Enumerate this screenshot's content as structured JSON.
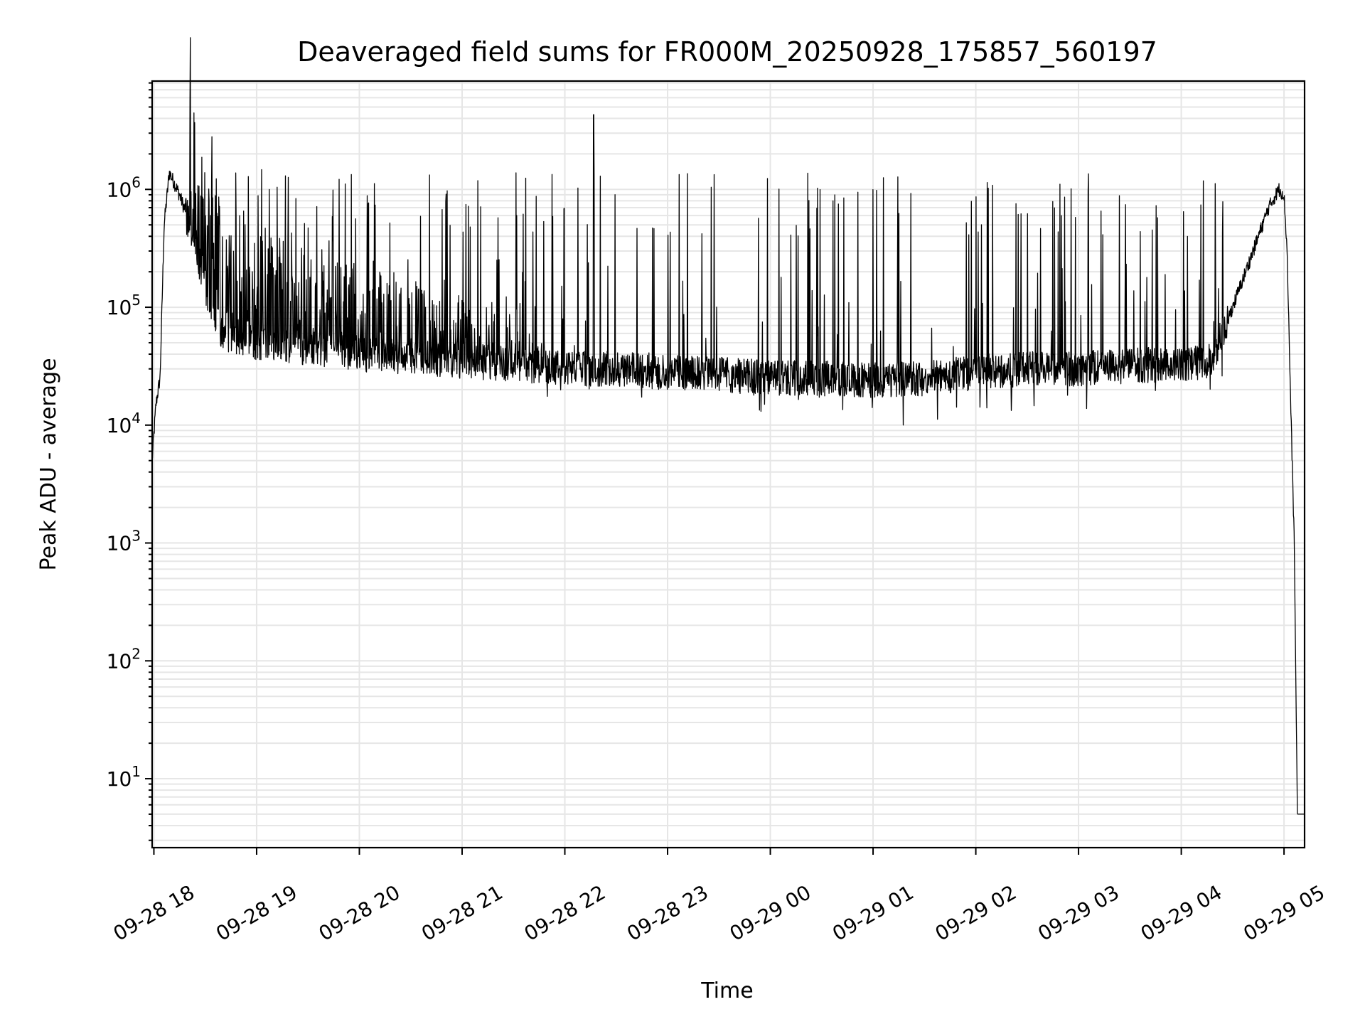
{
  "chart_data": {
    "type": "line",
    "title": "Deaveraged field sums for FR000M_20250928_175857_560197",
    "xlabel": "Time",
    "ylabel": "Peak ADU - average",
    "yscale": "log",
    "x_units": "hours since 09-28 00:00",
    "xlim": [
      17.983,
      29.2
    ],
    "ylim": [
      2.6,
      8300000.0
    ],
    "grid": "both (major and minor)",
    "x_ticks": [
      {
        "value": 18,
        "label": "09-28 18"
      },
      {
        "value": 19,
        "label": "09-28 19"
      },
      {
        "value": 20,
        "label": "09-28 20"
      },
      {
        "value": 21,
        "label": "09-28 21"
      },
      {
        "value": 22,
        "label": "09-28 22"
      },
      {
        "value": 23,
        "label": "09-28 23"
      },
      {
        "value": 24,
        "label": "09-29 00"
      },
      {
        "value": 25,
        "label": "09-29 01"
      },
      {
        "value": 26,
        "label": "09-29 02"
      },
      {
        "value": 27,
        "label": "09-29 03"
      },
      {
        "value": 28,
        "label": "09-29 04"
      },
      {
        "value": 29,
        "label": "09-29 05"
      }
    ],
    "y_ticks": [
      {
        "value": 10,
        "base": "10",
        "exp": "1"
      },
      {
        "value": 100,
        "base": "10",
        "exp": "2"
      },
      {
        "value": 1000,
        "base": "10",
        "exp": "3"
      },
      {
        "value": 10000,
        "base": "10",
        "exp": "4"
      },
      {
        "value": 100000,
        "base": "10",
        "exp": "5"
      },
      {
        "value": 1000000,
        "base": "10",
        "exp": "6"
      }
    ],
    "series": [
      {
        "name": "Peak ADU - average",
        "color": "#000000",
        "baseline_points": [
          [
            17.983,
            5000
          ],
          [
            18.02,
            15000
          ],
          [
            18.06,
            25000
          ],
          [
            18.1,
            500000
          ],
          [
            18.15,
            1400000
          ],
          [
            18.25,
            900000
          ],
          [
            18.35,
            500000
          ],
          [
            18.5,
            150000
          ],
          [
            18.65,
            60000
          ],
          [
            19.0,
            50000
          ],
          [
            19.5,
            45000
          ],
          [
            20.0,
            40000
          ],
          [
            20.5,
            38000
          ],
          [
            21.0,
            35000
          ],
          [
            21.5,
            33000
          ],
          [
            22.0,
            30000
          ],
          [
            22.5,
            30000
          ],
          [
            23.0,
            28000
          ],
          [
            23.5,
            27000
          ],
          [
            24.0,
            25000
          ],
          [
            24.5,
            25000
          ],
          [
            25.0,
            24000
          ],
          [
            25.5,
            25000
          ],
          [
            26.0,
            28000
          ],
          [
            26.5,
            30000
          ],
          [
            27.0,
            30000
          ],
          [
            27.5,
            32000
          ],
          [
            28.0,
            33000
          ],
          [
            28.3,
            35000
          ],
          [
            28.5,
            100000
          ],
          [
            28.7,
            300000
          ],
          [
            28.85,
            700000
          ],
          [
            28.95,
            1000000
          ],
          [
            29.0,
            900000
          ],
          [
            29.03,
            300000
          ],
          [
            29.07,
            10000
          ],
          [
            29.1,
            1000
          ],
          [
            29.13,
            5
          ],
          [
            29.2,
            5
          ]
        ],
        "dense_fluctuation_range": [
          18.35,
          21.8
        ],
        "typical_spike_value": 1000000,
        "max_spike": [
          22.28,
          4300000
        ],
        "min_value": 5
      }
    ]
  }
}
